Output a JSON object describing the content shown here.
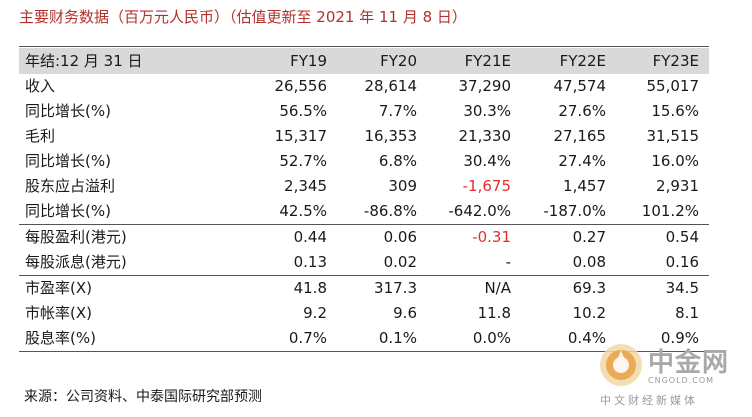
{
  "title": "主要财务数据（百万元人民币）（估值更新至 2021 年 11 月 8 日）",
  "header": {
    "label": "年结:12 月 31 日",
    "columns": [
      "FY19",
      "FY20",
      "FY21E",
      "FY22E",
      "FY23E"
    ]
  },
  "rows": [
    {
      "label": "收入",
      "values": [
        "26,556",
        "28,614",
        "37,290",
        "47,574",
        "55,017"
      ]
    },
    {
      "label": "同比增长(%)",
      "values": [
        "56.5%",
        "7.7%",
        "30.3%",
        "27.6%",
        "15.6%"
      ]
    },
    {
      "label": "毛利",
      "values": [
        "15,317",
        "16,353",
        "21,330",
        "27,165",
        "31,515"
      ]
    },
    {
      "label": "同比增长(%)",
      "values": [
        "52.7%",
        "6.8%",
        "30.4%",
        "27.4%",
        "16.0%"
      ]
    },
    {
      "label": "股东应占溢利",
      "values": [
        "2,345",
        "309",
        "-1,675",
        "1,457",
        "2,931"
      ]
    },
    {
      "label": "同比增长(%)",
      "values": [
        "42.5%",
        "-86.8%",
        "-642.0%",
        "-187.0%",
        "101.2%"
      ]
    },
    {
      "label": "每股盈利(港元)",
      "values": [
        "0.44",
        "0.06",
        "-0.31",
        "0.27",
        "0.54"
      ]
    },
    {
      "label": "每股派息(港元)",
      "values": [
        "0.13",
        "0.02",
        "-",
        "0.08",
        "0.16"
      ]
    },
    {
      "label": "市盈率(X)",
      "values": [
        "41.8",
        "317.3",
        "N/A",
        "69.3",
        "34.5"
      ]
    },
    {
      "label": "市帐率(X)",
      "values": [
        "9.2",
        "9.6",
        "11.8",
        "10.2",
        "8.1"
      ]
    },
    {
      "label": "股息率(%)",
      "values": [
        "0.7%",
        "0.1%",
        "0.0%",
        "0.4%",
        "0.9%"
      ]
    }
  ],
  "source": "来源：公司资料、中泰国际研究部预测",
  "watermark": {
    "name": "中金网",
    "url": "CNGOLD.COM",
    "subtitle": "中文财经新媒体"
  },
  "colors": {
    "title": "#b2312b",
    "negative": "#e0302b",
    "header_bg": "#d9d9d9"
  }
}
